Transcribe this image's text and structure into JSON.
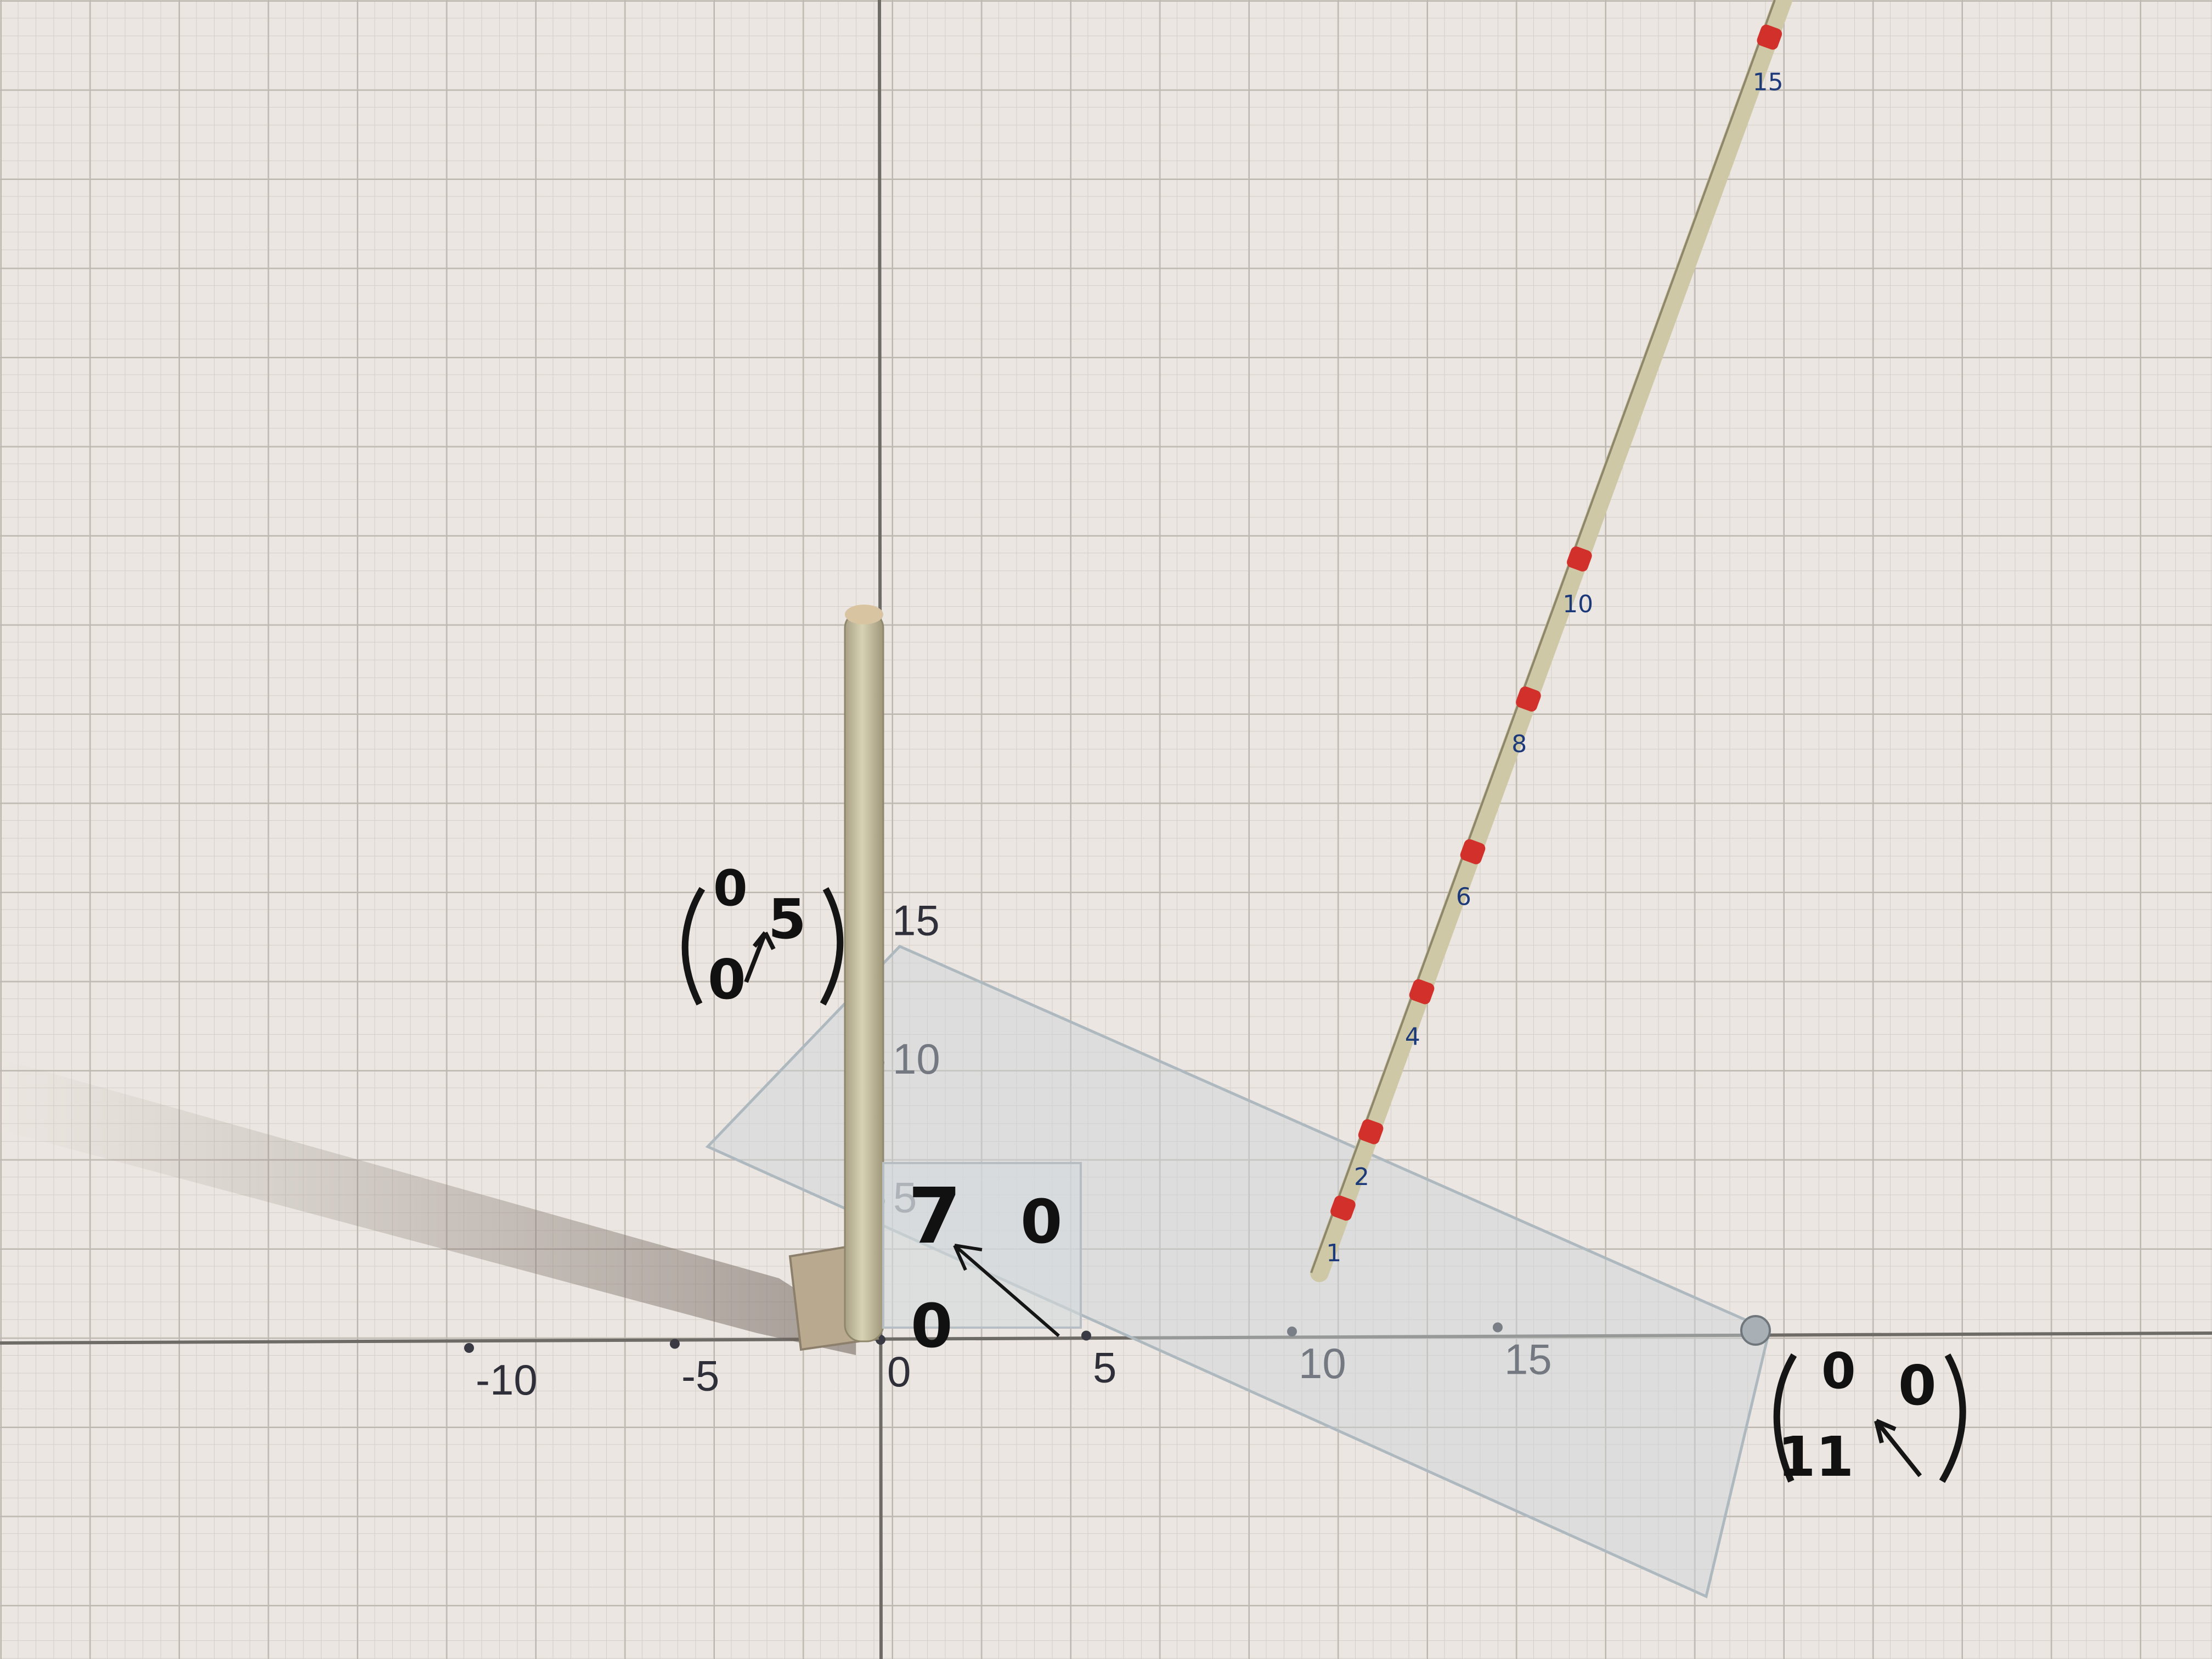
{
  "scene": {
    "description_label": "graph-paper-3d-model",
    "colors": {
      "paper": "#ebe6e1",
      "minor_grid": "#d2ccc6",
      "major_grid": "#bdb6ae",
      "axis": "#6e6a66",
      "rod": "#cfc8a6",
      "rod_marks": "#d2302a",
      "plastic": "#c9d2d8",
      "ink": "#151515",
      "rod_numbers": "#1c3a7a"
    }
  },
  "axes": {
    "x_ticks": [
      {
        "value": -10,
        "label": "-10"
      },
      {
        "value": -5,
        "label": "-5"
      },
      {
        "value": 0,
        "label": "0"
      },
      {
        "value": 5,
        "label": "5"
      },
      {
        "value": 10,
        "label": "10"
      },
      {
        "value": 15,
        "label": "15"
      }
    ],
    "y_ticks": [
      {
        "value": 5,
        "label": "5"
      },
      {
        "value": 10,
        "label": "10"
      },
      {
        "value": 15,
        "label": "15"
      }
    ]
  },
  "annotations": {
    "vector_top": {
      "row1": "0",
      "row2": "0",
      "sup": "5"
    },
    "vector_right": {
      "row1": "0",
      "row2": "11",
      "sup": "0"
    },
    "card": {
      "value": "7",
      "right": "0",
      "below": "0"
    }
  },
  "inclined_rod": {
    "labels": [
      "1",
      "2",
      "4",
      "6",
      "8",
      "10",
      "15"
    ]
  }
}
